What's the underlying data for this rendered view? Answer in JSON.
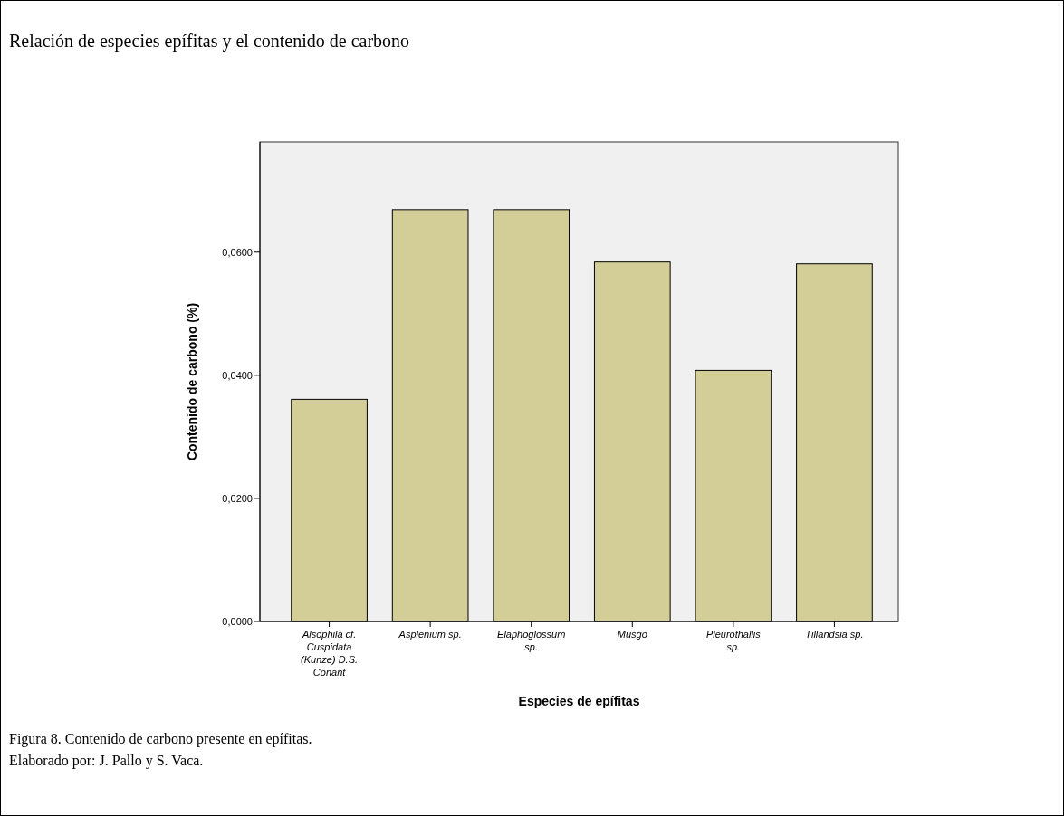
{
  "chart_data": {
    "type": "bar",
    "title": "Relación de especies epífitas y el contenido de carbono",
    "xlabel": "Especies de epífitas",
    "ylabel": "Contenido de carbono (%)",
    "categories": [
      "Alsophila cf. Cuspidata (Kunze) D.S. Conant",
      "Asplenium sp.",
      "Elaphoglossum sp.",
      "Musgo",
      "Pleurothallis sp.",
      "Tillandsia sp."
    ],
    "values": [
      0.0361,
      0.0669,
      0.0669,
      0.0584,
      0.0408,
      0.0581
    ],
    "color": "#d3ce97",
    "ylim": [
      0,
      0.0779
    ],
    "yticks": [
      {
        "value": 0,
        "label": "0,0000"
      },
      {
        "value": 0.02,
        "label": "0,0200"
      },
      {
        "value": 0.04,
        "label": "0,0400"
      },
      {
        "value": 0.06,
        "label": "0,0600"
      }
    ],
    "grid": false,
    "annotations": [
      "Figura 8. Contenido de carbono presente en epífitas.",
      "Elaborado por: J. Pallo y S. Vaca."
    ]
  }
}
